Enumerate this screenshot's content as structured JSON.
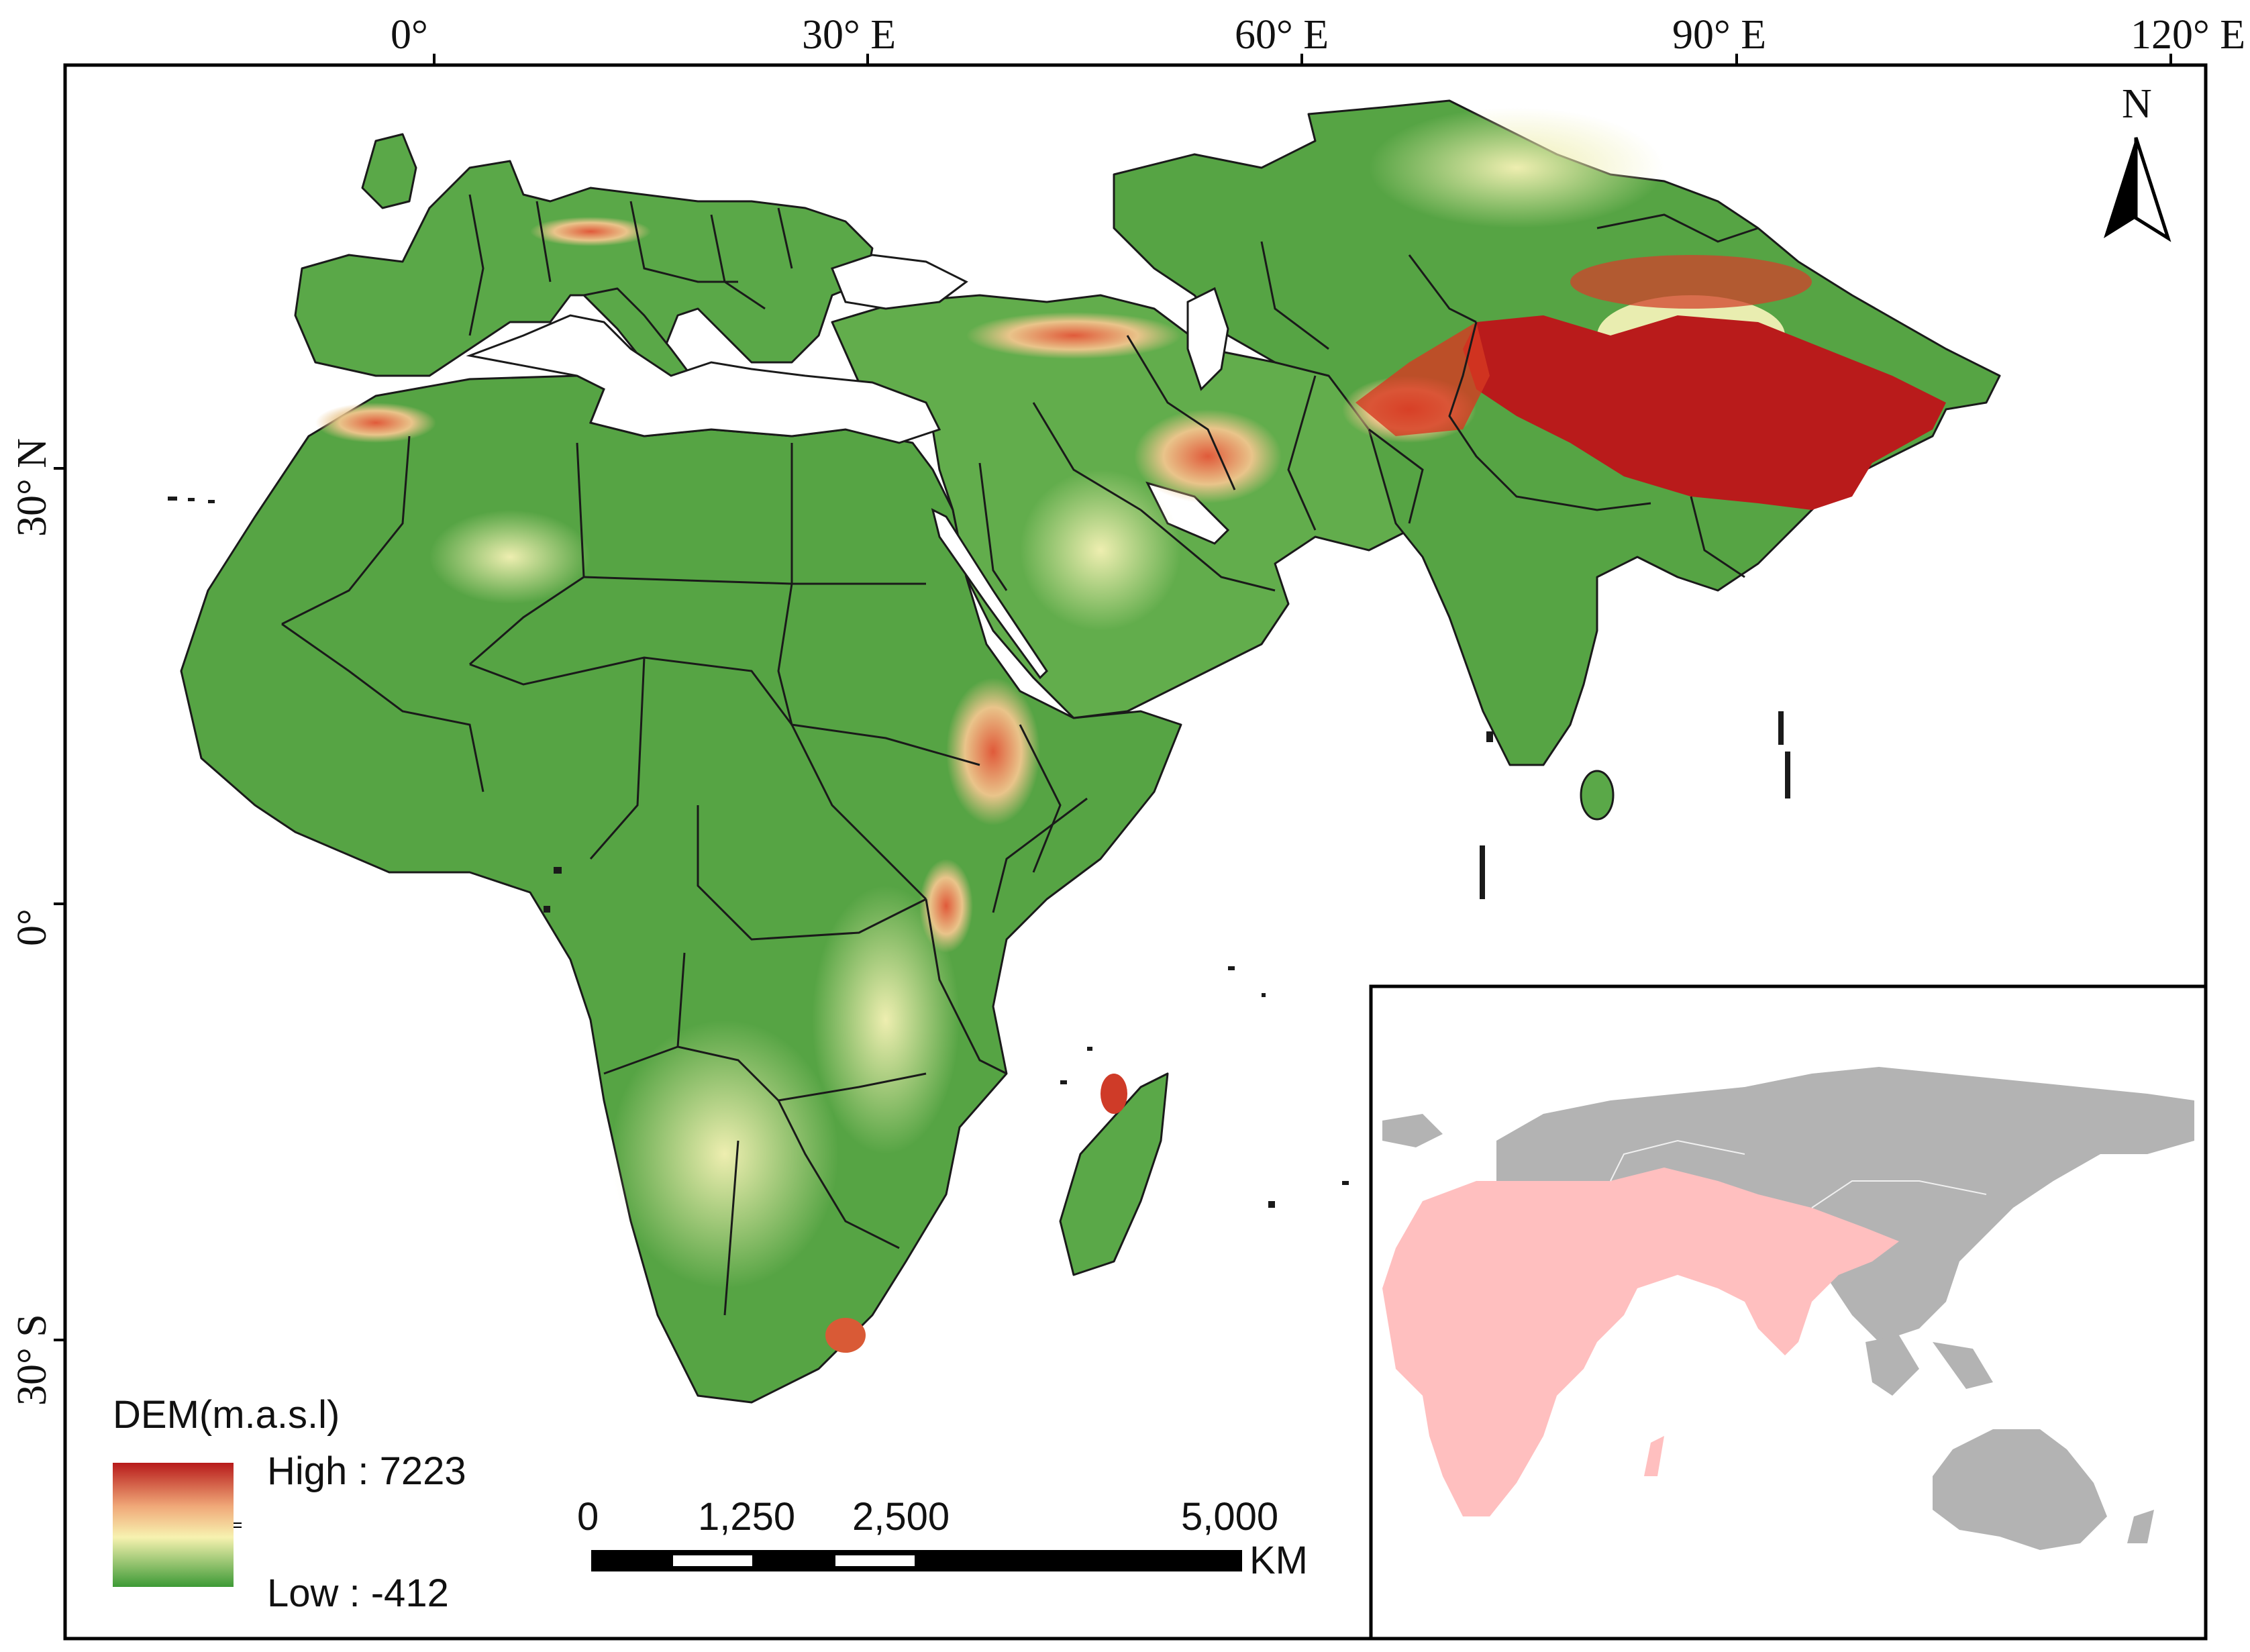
{
  "map": {
    "graticule_x": [
      {
        "label": "0°",
        "lon": 0
      },
      {
        "label": "30°  E",
        "lon": 30
      },
      {
        "label": "60°  E",
        "lon": 60
      },
      {
        "label": "90°  E",
        "lon": 90
      },
      {
        "label": "120°  E",
        "lon": 120
      }
    ],
    "graticule_y": [
      {
        "label": "30°  N",
        "lat": 30
      },
      {
        "label": "0°",
        "lat": 0
      },
      {
        "label": "30°  S",
        "lat": -30
      }
    ],
    "north_label": "N",
    "legend": {
      "title": "DEM(m.a.s.l)",
      "high_label": "High : 7223",
      "low_label": "Low : -412",
      "high_value": 7223,
      "low_value": -412,
      "colors": {
        "high": "#b71a1a",
        "mid": "#f7f2b0",
        "low": "#3d9a36"
      }
    },
    "scale_bar": {
      "ticks": [
        "0",
        "1,250",
        "2,500",
        "5,000"
      ],
      "unit": "KM"
    },
    "inset": {
      "highlight_color": "#ffbfbf",
      "base_color": "#b3b3b3"
    },
    "colors": {
      "lowland": "#4d9e3f",
      "midland": "#c9dd8a",
      "highland": "#c61b1b",
      "border": "#1a1a1a"
    }
  }
}
